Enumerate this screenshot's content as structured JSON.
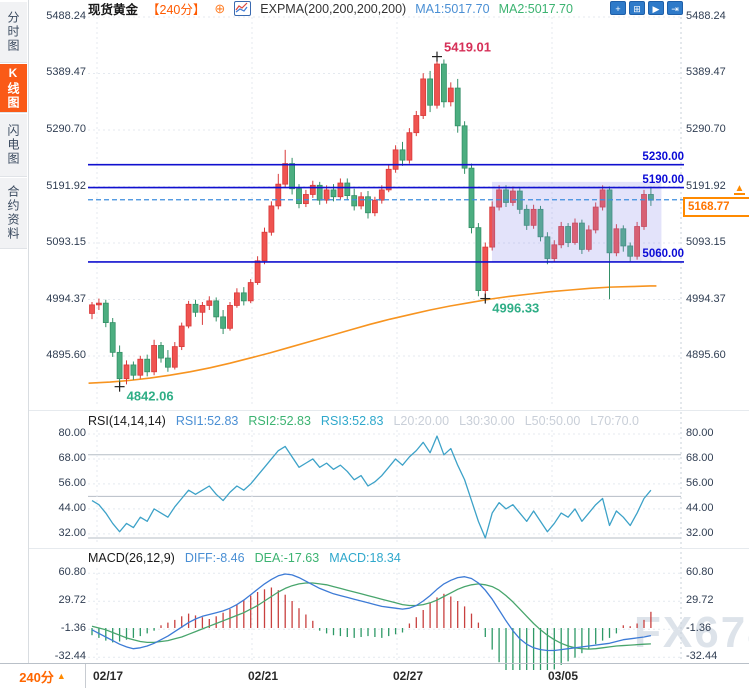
{
  "header": {
    "symbol": "现货黄金",
    "period_tag": "【240分】",
    "plus_glyph": "⊕",
    "indicator": "EXPMA(200,200,200,200)",
    "ma1": "MA1:5017.70",
    "ma2": "MA2:5017.70"
  },
  "sidebar": {
    "tabs": [
      {
        "label": "分时图",
        "active": false
      },
      {
        "label": "K线图",
        "active": true
      },
      {
        "label": "闪电图",
        "active": false
      },
      {
        "label": "合约资料",
        "active": false
      }
    ]
  },
  "toolbar": {
    "icons": [
      {
        "name": "crosshair-move-icon",
        "glyph": "+"
      },
      {
        "name": "axis-range-icon",
        "glyph": "⊞"
      },
      {
        "name": "chart-pointer-icon",
        "glyph": "▶"
      },
      {
        "name": "exit-panel-icon",
        "glyph": "⇥"
      }
    ]
  },
  "price_panel": {
    "axis_labels": [
      "5488.24",
      "5389.47",
      "5290.70",
      "5191.92",
      "5093.15",
      "4994.37",
      "4895.60"
    ],
    "hlines": [
      {
        "label": "5230.00",
        "price": 5230.0
      },
      {
        "label": "5190.00",
        "price": 5190.0
      },
      {
        "label": "5060.00",
        "price": 5060.0
      }
    ],
    "current_price": {
      "label": "5168.77",
      "price": 5168.77
    },
    "annotations": [
      {
        "text": "5419.01",
        "type": "high",
        "index": 50
      },
      {
        "text": "4842.06",
        "type": "low",
        "index": 4
      },
      {
        "text": "4996.33",
        "type": "low",
        "index": 57
      }
    ]
  },
  "rsi_panel": {
    "title": "RSI(14,14,14)",
    "values": [
      {
        "label": "RSI1:52.83",
        "color": "#4a8fd4"
      },
      {
        "label": "RSI2:52.83",
        "color": "#3cb371"
      },
      {
        "label": "RSI3:52.83",
        "color": "#2fa8cc"
      },
      {
        "label": "L20:20.00",
        "color": "#c9cfd8"
      },
      {
        "label": "L30:30.00",
        "color": "#c9cfd8"
      },
      {
        "label": "L50:50.00",
        "color": "#c9cfd8"
      },
      {
        "label": "L70:70.0",
        "color": "#c9cfd8"
      }
    ],
    "axis_labels": [
      "80.00",
      "68.00",
      "56.00",
      "44.00",
      "32.00"
    ]
  },
  "macd_panel": {
    "title": "MACD(26,12,9)",
    "values": [
      {
        "label": "DIFF:-8.46",
        "color": "#4a8fd4"
      },
      {
        "label": "DEA:-17.63",
        "color": "#3cb371"
      },
      {
        "label": "MACD:18.34",
        "color": "#2fa8cc"
      }
    ],
    "axis_labels": [
      "60.80",
      "29.72",
      "-1.36",
      "-32.44"
    ]
  },
  "bottom": {
    "period": "240分",
    "arrow": "▲",
    "dates": [
      "02/17",
      "02/21",
      "02/27",
      "03/05"
    ]
  },
  "watermark": "FX678",
  "colors": {
    "up": "#d93a3a",
    "up_fill": "#ef5350",
    "down": "#349067",
    "down_fill": "#4cae80",
    "expma": "#f79420",
    "level_line": "#1010cf",
    "current_dash": "#3e8ede",
    "range_box_fill": "rgba(140,140,235,0.24)",
    "rsi_line": "#3da2c8",
    "diff_line": "#3d7bd6",
    "dea_line": "#48a56c",
    "hist_up": "#c8403f",
    "hist_down": "#2e9966",
    "annotation_high": "#d63058",
    "annotation_low": "#2fae86",
    "grid_dot": "#e4e9ef",
    "grid_solid": "#b6bdc6"
  },
  "chart_data": {
    "type": "candlestick+indicators",
    "symbol": "现货黄金",
    "interval": "240min",
    "date_ticks": [
      "02/17",
      "02/21",
      "02/27",
      "03/05"
    ],
    "price_axis_range": [
      4895.6,
      5488.24
    ],
    "levels": [
      5230.0,
      5190.0,
      5060.0
    ],
    "last_price": 5168.77,
    "candles_ohlc": [
      [
        4970,
        4990,
        4960,
        4985
      ],
      [
        4985,
        4996,
        4976,
        4988
      ],
      [
        4988,
        4994,
        4946,
        4954
      ],
      [
        4954,
        4962,
        4894,
        4902
      ],
      [
        4902,
        4914,
        4842,
        4856
      ],
      [
        4856,
        4888,
        4846,
        4880
      ],
      [
        4880,
        4886,
        4854,
        4862
      ],
      [
        4862,
        4896,
        4856,
        4890
      ],
      [
        4890,
        4898,
        4860,
        4868
      ],
      [
        4868,
        4924,
        4862,
        4914
      ],
      [
        4914,
        4920,
        4884,
        4892
      ],
      [
        4892,
        4906,
        4868,
        4876
      ],
      [
        4876,
        4920,
        4872,
        4912
      ],
      [
        4912,
        4954,
        4906,
        4948
      ],
      [
        4948,
        4992,
        4944,
        4986
      ],
      [
        4986,
        4994,
        4964,
        4972
      ],
      [
        4972,
        4990,
        4950,
        4984
      ],
      [
        4984,
        5000,
        4976,
        4992
      ],
      [
        4992,
        4998,
        4956,
        4964
      ],
      [
        4964,
        4976,
        4934,
        4944
      ],
      [
        4944,
        4990,
        4940,
        4984
      ],
      [
        4984,
        5014,
        4980,
        5006
      ],
      [
        5006,
        5016,
        4984,
        4992
      ],
      [
        4992,
        5030,
        4988,
        5024
      ],
      [
        5024,
        5070,
        5020,
        5062
      ],
      [
        5062,
        5120,
        5056,
        5112
      ],
      [
        5112,
        5166,
        5106,
        5158
      ],
      [
        5158,
        5214,
        5152,
        5196
      ],
      [
        5196,
        5256,
        5190,
        5232
      ],
      [
        5232,
        5242,
        5178,
        5188
      ],
      [
        5188,
        5196,
        5154,
        5162
      ],
      [
        5162,
        5186,
        5156,
        5178
      ],
      [
        5178,
        5202,
        5172,
        5194
      ],
      [
        5194,
        5200,
        5160,
        5168
      ],
      [
        5168,
        5194,
        5162,
        5186
      ],
      [
        5186,
        5196,
        5166,
        5174
      ],
      [
        5174,
        5206,
        5170,
        5198
      ],
      [
        5198,
        5206,
        5168,
        5176
      ],
      [
        5176,
        5188,
        5150,
        5158
      ],
      [
        5158,
        5182,
        5152,
        5174
      ],
      [
        5174,
        5184,
        5136,
        5146
      ],
      [
        5146,
        5174,
        5140,
        5168
      ],
      [
        5168,
        5194,
        5162,
        5186
      ],
      [
        5186,
        5230,
        5182,
        5222
      ],
      [
        5222,
        5264,
        5216,
        5256
      ],
      [
        5256,
        5270,
        5228,
        5238
      ],
      [
        5238,
        5294,
        5232,
        5286
      ],
      [
        5286,
        5324,
        5280,
        5316
      ],
      [
        5316,
        5390,
        5310,
        5380
      ],
      [
        5380,
        5394,
        5322,
        5334
      ],
      [
        5334,
        5419,
        5328,
        5406
      ],
      [
        5406,
        5414,
        5330,
        5340
      ],
      [
        5340,
        5374,
        5332,
        5364
      ],
      [
        5364,
        5380,
        5286,
        5298
      ],
      [
        5298,
        5306,
        5214,
        5224
      ],
      [
        5224,
        5232,
        5110,
        5120
      ],
      [
        5120,
        5128,
        5000,
        5010
      ],
      [
        5010,
        5094,
        4996,
        5086
      ],
      [
        5086,
        5166,
        5080,
        5156
      ],
      [
        5156,
        5194,
        5150,
        5186
      ],
      [
        5186,
        5194,
        5156,
        5164
      ],
      [
        5164,
        5192,
        5158,
        5184
      ],
      [
        5184,
        5190,
        5144,
        5152
      ],
      [
        5152,
        5160,
        5116,
        5124
      ],
      [
        5124,
        5160,
        5118,
        5152
      ],
      [
        5152,
        5158,
        5096,
        5104
      ],
      [
        5104,
        5112,
        5056,
        5066
      ],
      [
        5066,
        5098,
        5060,
        5090
      ],
      [
        5090,
        5130,
        5084,
        5122
      ],
      [
        5122,
        5128,
        5086,
        5094
      ],
      [
        5094,
        5136,
        5090,
        5128
      ],
      [
        5128,
        5134,
        5074,
        5082
      ],
      [
        5082,
        5124,
        5078,
        5116
      ],
      [
        5116,
        5164,
        5110,
        5156
      ],
      [
        5156,
        5194,
        5150,
        5186
      ],
      [
        5186,
        5192,
        4995,
        5076
      ],
      [
        5076,
        5126,
        5070,
        5118
      ],
      [
        5118,
        5124,
        5078,
        5088
      ],
      [
        5088,
        5094,
        5060,
        5070
      ],
      [
        5070,
        5130,
        5064,
        5122
      ],
      [
        5122,
        5186,
        5116,
        5178
      ],
      [
        5178,
        5192,
        5158,
        5168
      ]
    ],
    "expma_points": [
      [
        -0.5,
        4848
      ],
      [
        2.6,
        4850
      ],
      [
        5.5,
        4853
      ],
      [
        8.4,
        4857
      ],
      [
        11.3,
        4862
      ],
      [
        14.2,
        4868
      ],
      [
        17.1,
        4875
      ],
      [
        20,
        4883
      ],
      [
        22.9,
        4892
      ],
      [
        25.8,
        4901
      ],
      [
        28.7,
        4911
      ],
      [
        31.6,
        4921
      ],
      [
        34.5,
        4931
      ],
      [
        37.4,
        4941
      ],
      [
        40.3,
        4951
      ],
      [
        43.2,
        4960
      ],
      [
        46.1,
        4968
      ],
      [
        49,
        4976
      ],
      [
        51.9,
        4983
      ],
      [
        54.8,
        4989
      ],
      [
        57.7,
        4995
      ],
      [
        60.6,
        5000
      ],
      [
        63.5,
        5004
      ],
      [
        66.4,
        5008
      ],
      [
        69.3,
        5011
      ],
      [
        72.2,
        5014
      ],
      [
        75.1,
        5016
      ],
      [
        78,
        5017
      ],
      [
        80.9,
        5018
      ],
      [
        81.8,
        5018
      ]
    ],
    "range_box": {
      "start_index": 58.4,
      "end_index": 81.8,
      "top_price": 5200,
      "bottom_price": 5060
    },
    "rsi": {
      "range_labels": [
        80,
        68,
        56,
        44,
        32
      ],
      "guide_levels": [
        70,
        50,
        30
      ],
      "values": [
        48,
        46,
        42,
        37,
        33,
        37,
        35,
        40,
        38,
        44,
        42,
        40,
        45,
        49,
        53,
        51,
        53,
        55,
        51,
        48,
        52,
        55,
        53,
        56,
        60,
        64,
        68,
        72,
        74,
        69,
        64,
        66,
        68,
        64,
        66,
        63,
        65,
        62,
        58,
        60,
        55,
        57,
        60,
        64,
        68,
        65,
        69,
        72,
        76,
        71,
        79,
        70,
        73,
        65,
        58,
        48,
        38,
        30,
        42,
        47,
        44,
        46,
        42,
        38,
        43,
        38,
        33,
        37,
        42,
        40,
        44,
        38,
        42,
        46,
        49,
        36,
        43,
        40,
        36,
        42,
        49,
        53
      ]
    },
    "macd": {
      "range_labels": [
        60.8,
        29.72,
        -1.36,
        -32.44
      ],
      "hist": [
        -8,
        -11,
        -14,
        -16,
        -15,
        -13,
        -11,
        -9,
        -6,
        -3,
        3,
        6,
        9,
        13,
        16,
        14,
        12,
        10,
        13,
        17,
        21,
        26,
        31,
        36,
        40,
        43,
        45,
        42,
        37,
        30,
        22,
        15,
        8,
        -3,
        -6,
        -8,
        -9,
        -10,
        -11,
        -10,
        -9,
        -10,
        -11,
        -9,
        -7,
        -5,
        5,
        12,
        20,
        28,
        34,
        38,
        35,
        30,
        24,
        16,
        6,
        -10,
        -24,
        -38,
        -50,
        -60,
        -66,
        -68,
        -64,
        -58,
        -52,
        -46,
        -41,
        -37,
        -33,
        -28,
        -23,
        -18,
        -14,
        -11,
        -6,
        3,
        2,
        5,
        9,
        18
      ],
      "diff": [
        -2,
        -6,
        -10,
        -14,
        -18,
        -21,
        -23,
        -22,
        -20,
        -17,
        -13,
        -9,
        -4,
        1,
        6,
        10,
        13,
        15,
        17,
        19,
        22,
        26,
        31,
        37,
        43,
        49,
        54,
        58,
        60,
        59,
        56,
        52,
        48,
        44,
        41,
        38,
        36,
        34,
        32,
        30,
        28,
        26,
        24,
        23,
        22,
        21,
        22,
        25,
        30,
        36,
        43,
        49,
        53,
        56,
        57,
        55,
        50,
        42,
        32,
        20,
        8,
        -3,
        -12,
        -18,
        -22,
        -24,
        -25,
        -25,
        -24,
        -23,
        -22,
        -21,
        -20,
        -19,
        -18,
        -17,
        -15,
        -13,
        -12,
        -11,
        -10,
        -8.46
      ],
      "dea": [
        2,
        0,
        -2,
        -5,
        -8,
        -11,
        -13,
        -15,
        -16,
        -16,
        -15,
        -14,
        -12,
        -10,
        -7,
        -4,
        -1,
        2,
        5,
        8,
        11,
        14,
        17,
        21,
        25,
        30,
        35,
        40,
        44,
        47,
        49,
        50,
        50,
        49,
        48,
        46,
        44,
        42,
        40,
        38,
        36,
        34,
        32,
        30,
        28,
        26,
        25,
        25,
        26,
        28,
        31,
        35,
        39,
        43,
        46,
        48,
        49,
        48,
        46,
        42,
        36,
        29,
        21,
        13,
        5,
        -2,
        -8,
        -13,
        -17,
        -20,
        -22,
        -23,
        -23.5,
        -23,
        -22,
        -21,
        -20,
        -19.5,
        -19,
        -18.5,
        -18,
        -17.63
      ]
    }
  }
}
